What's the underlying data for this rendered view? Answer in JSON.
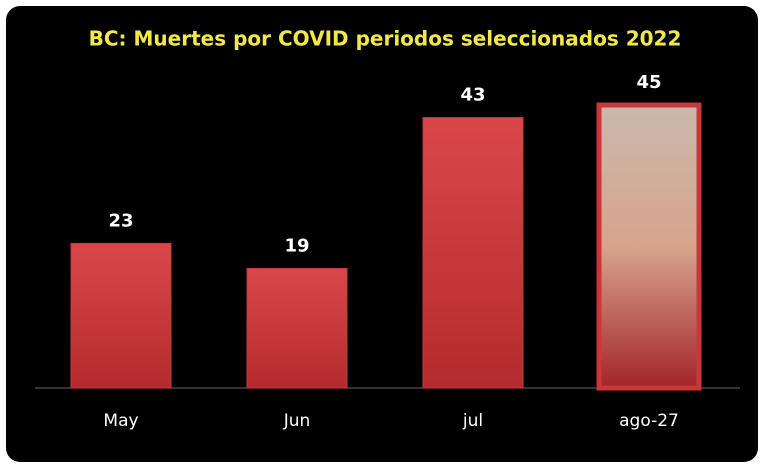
{
  "chart_data": {
    "type": "bar",
    "title": "BC: Muertes por COVID periodos seleccionados 2022",
    "categories": [
      "May",
      "Jun",
      "jul",
      "ago-27"
    ],
    "values": [
      23,
      19,
      43,
      45
    ],
    "color": "#c9373b"
  }
}
